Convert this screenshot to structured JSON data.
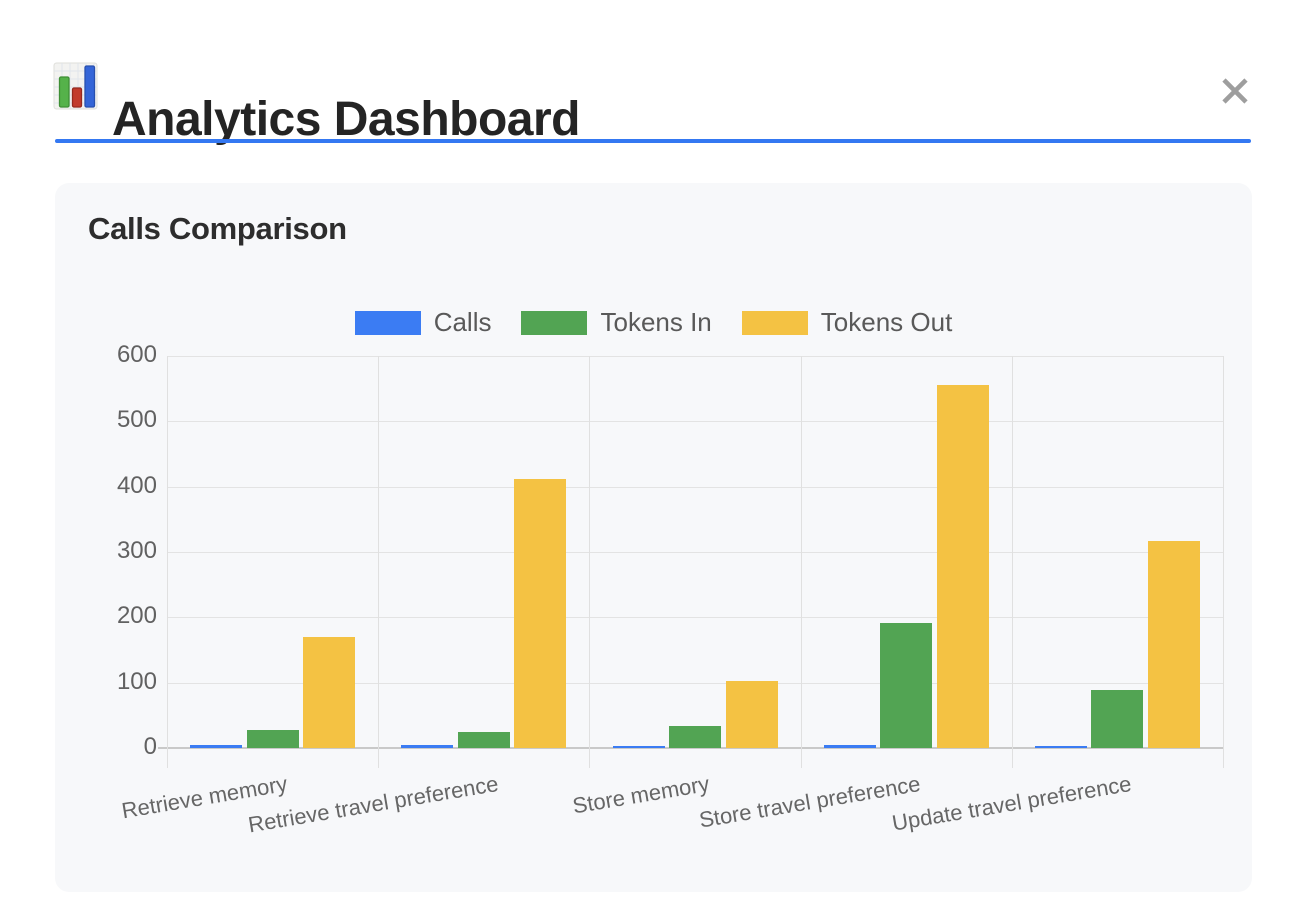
{
  "header": {
    "title": "Analytics Dashboard",
    "icon": "bar-chart-icon",
    "close": "close-icon"
  },
  "card": {
    "title": "Calls Comparison"
  },
  "chart_data": {
    "type": "bar",
    "title": "Calls Comparison",
    "categories": [
      "Retrieve memory",
      "Retrieve travel preference",
      "Store memory",
      "Store travel preference",
      "Update travel preference"
    ],
    "series": [
      {
        "name": "Calls",
        "color": "#3B7CF3",
        "values": [
          4,
          4,
          2,
          5,
          3
        ]
      },
      {
        "name": "Tokens In",
        "color": "#52A453",
        "values": [
          27,
          24,
          34,
          192,
          89
        ]
      },
      {
        "name": "Tokens Out",
        "color": "#F4C243",
        "values": [
          170,
          412,
          103,
          555,
          317
        ]
      }
    ],
    "ylabel": "",
    "xlabel": "",
    "ylim": [
      0,
      600
    ],
    "yticks": [
      0,
      100,
      200,
      300,
      400,
      500,
      600
    ],
    "grid": true,
    "legend_position": "top"
  },
  "colors": {
    "accent_rule": "#3478F2",
    "card_bg": "#F7F8FA",
    "grid": "#E3E3E3",
    "baseline": "#C9C9C9",
    "tick_text": "#616161",
    "category_text": "#666666",
    "close_icon": "#9E9E9E"
  }
}
